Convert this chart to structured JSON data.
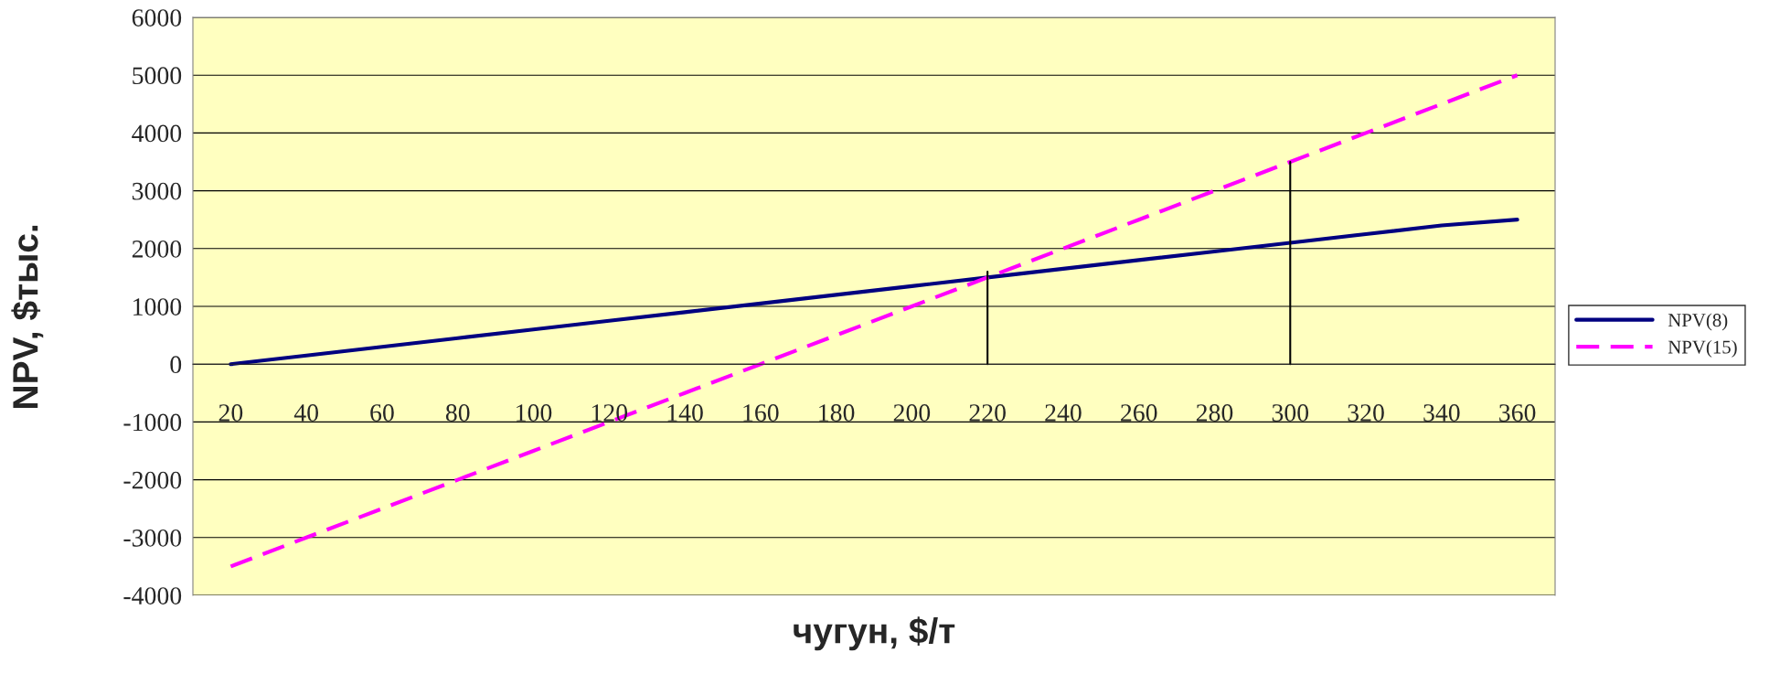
{
  "chart_data": {
    "type": "line",
    "xlabel": "чугун, $/т",
    "ylabel": "NPV, $тыс.",
    "categories": [
      "20",
      "40",
      "60",
      "80",
      "100",
      "120",
      "140",
      "160",
      "180",
      "200",
      "220",
      "240",
      "260",
      "280",
      "300",
      "320",
      "340",
      "360"
    ],
    "series": [
      {
        "name": "NPV(8)",
        "color": "#000080",
        "line_style": "solid",
        "values": [
          0,
          150,
          300,
          450,
          600,
          750,
          900,
          1050,
          1200,
          1350,
          1500,
          1650,
          1800,
          1950,
          2100,
          2250,
          2400,
          2500
        ]
      },
      {
        "name": "NPV(15)",
        "color": "#ff00ff",
        "line_style": "dashed",
        "values": [
          -3500,
          -3000,
          -2500,
          -2000,
          -1500,
          -1000,
          -500,
          0,
          500,
          1000,
          1500,
          2000,
          2500,
          3000,
          3500,
          4000,
          4500,
          5000
        ]
      },
      {
        "type": "line",
        "color": "#000000",
        "line_style": "solid",
        "x": [
          "220",
          "220"
        ],
        "values": [
          0,
          1600
        ]
      },
      {
        "type": "line",
        "color": "#000000",
        "line_style": "solid",
        "x": [
          "300",
          "300"
        ],
        "values": [
          0,
          3500
        ]
      }
    ],
    "ylim": [
      -4000,
      6000
    ],
    "yticks": [
      -4000,
      -3000,
      -2000,
      -1000,
      0,
      1000,
      2000,
      3000,
      4000,
      5000,
      6000
    ],
    "grid": "y",
    "legend": "right",
    "marker": "none"
  }
}
